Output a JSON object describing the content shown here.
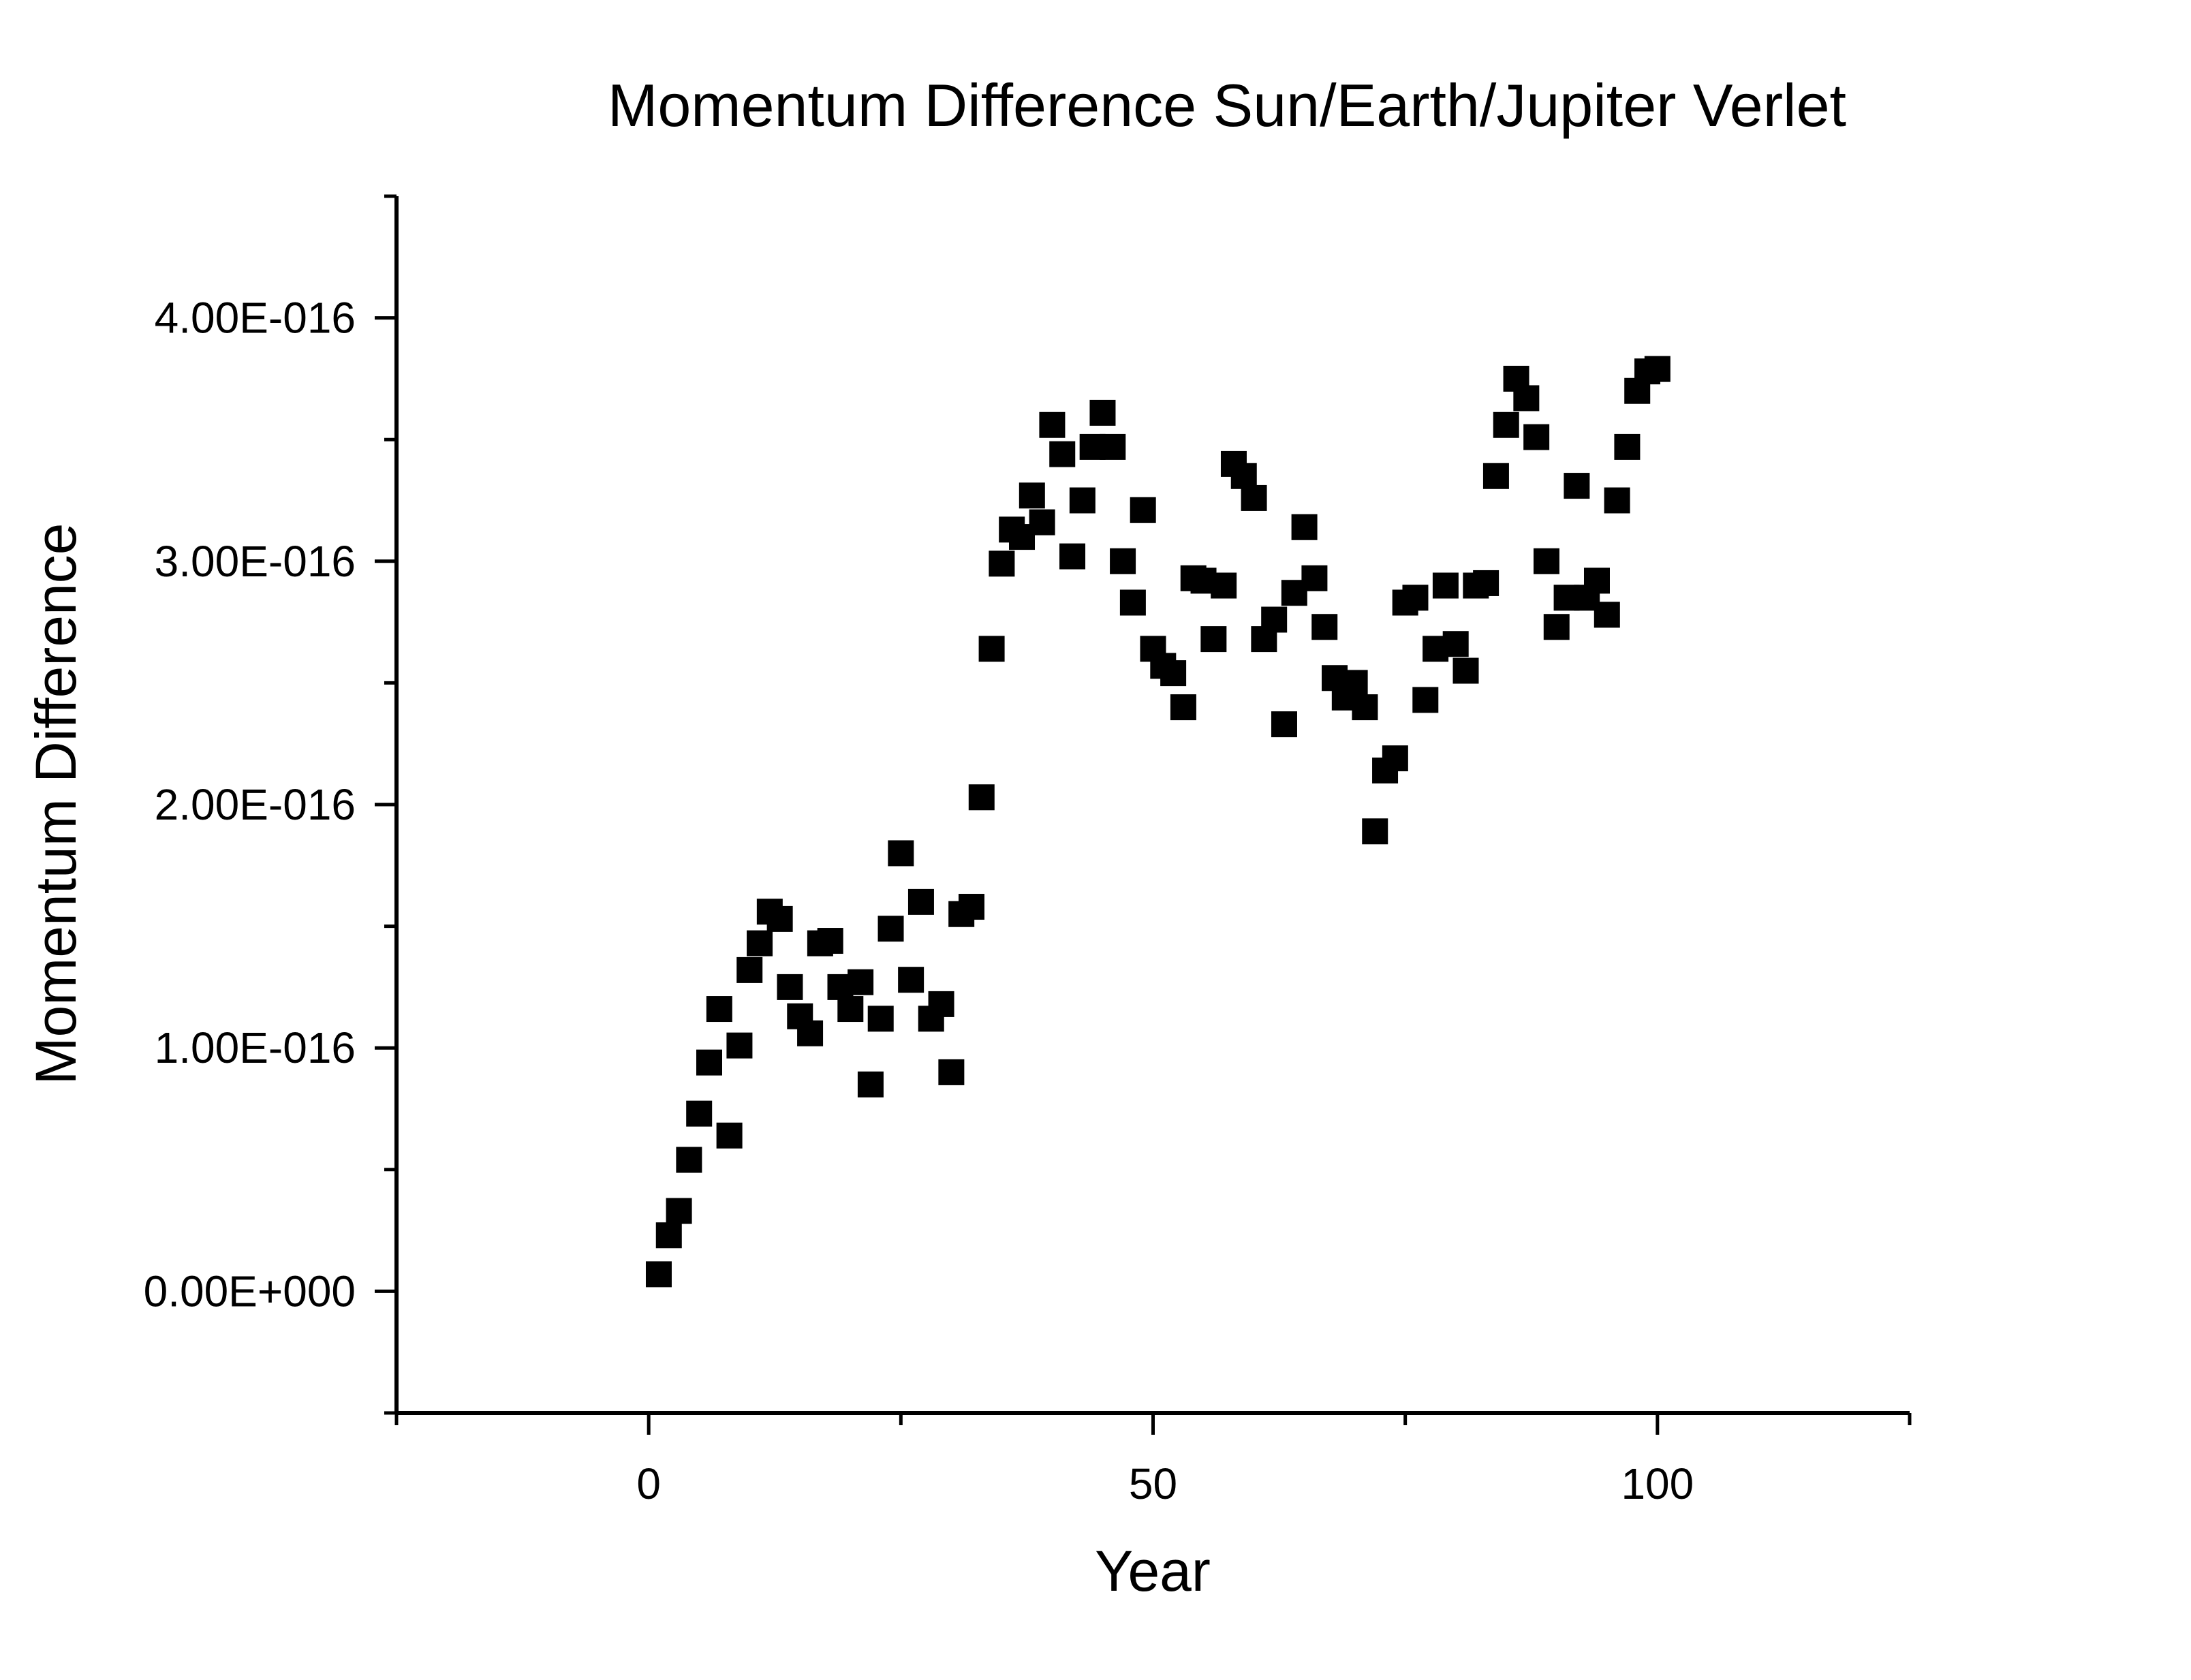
{
  "chart_data": {
    "type": "scatter",
    "title": "Momentum Difference Sun/Earth/Jupiter Verlet",
    "xlabel": "Year",
    "ylabel": "Momentum Difference",
    "xlim": [
      -25,
      125
    ],
    "ylim": [
      -5e-17,
      4.5e-16
    ],
    "x_ticks": [
      {
        "value": 0,
        "label": "0"
      },
      {
        "value": 50,
        "label": "50"
      },
      {
        "value": 100,
        "label": "100"
      }
    ],
    "y_ticks": [
      {
        "value": 0,
        "label": "0.00E+000"
      },
      {
        "value": 1e-16,
        "label": "1.00E-016"
      },
      {
        "value": 2e-16,
        "label": "2.00E-016"
      },
      {
        "value": 3e-16,
        "label": "3.00E-016"
      },
      {
        "value": 4e-16,
        "label": "4.00E-016"
      }
    ],
    "marker": "square",
    "marker_color": "#000000",
    "grid": false,
    "legend": "none",
    "series": [
      {
        "points": [
          [
            1,
            7e-18
          ],
          [
            2,
            2.3e-17
          ],
          [
            3,
            3.3e-17
          ],
          [
            4,
            5.4e-17
          ],
          [
            5,
            7.3e-17
          ],
          [
            6,
            9.4e-17
          ],
          [
            7,
            1.16e-16
          ],
          [
            8,
            6.4e-17
          ],
          [
            9,
            1.01e-16
          ],
          [
            10,
            1.32e-16
          ],
          [
            11,
            1.43e-16
          ],
          [
            12,
            1.56e-16
          ],
          [
            13,
            1.53e-16
          ],
          [
            14,
            1.25e-16
          ],
          [
            15,
            1.13e-16
          ],
          [
            16,
            1.06e-16
          ],
          [
            17,
            1.43e-16
          ],
          [
            18,
            1.44e-16
          ],
          [
            19,
            1.25e-16
          ],
          [
            20,
            1.16e-16
          ],
          [
            21,
            1.27e-16
          ],
          [
            22,
            8.5e-17
          ],
          [
            23,
            1.12e-16
          ],
          [
            24,
            1.49e-16
          ],
          [
            25,
            1.8e-16
          ],
          [
            26,
            1.28e-16
          ],
          [
            27,
            1.6e-16
          ],
          [
            28,
            1.12e-16
          ],
          [
            29,
            1.18e-16
          ],
          [
            30,
            9e-17
          ],
          [
            31,
            1.55e-16
          ],
          [
            32,
            1.58e-16
          ],
          [
            33,
            2.03e-16
          ],
          [
            34,
            2.64e-16
          ],
          [
            35,
            2.99e-16
          ],
          [
            36,
            3.13e-16
          ],
          [
            37,
            3.1e-16
          ],
          [
            38,
            3.27e-16
          ],
          [
            39,
            3.16e-16
          ],
          [
            40,
            3.56e-16
          ],
          [
            41,
            3.44e-16
          ],
          [
            42,
            3.02e-16
          ],
          [
            43,
            3.25e-16
          ],
          [
            44,
            3.47e-16
          ],
          [
            45,
            3.61e-16
          ],
          [
            46,
            3.47e-16
          ],
          [
            47,
            3e-16
          ],
          [
            48,
            2.83e-16
          ],
          [
            49,
            3.21e-16
          ],
          [
            50,
            2.64e-16
          ],
          [
            51,
            2.57e-16
          ],
          [
            52,
            2.54e-16
          ],
          [
            53,
            2.4e-16
          ],
          [
            54,
            2.93e-16
          ],
          [
            55,
            2.92e-16
          ],
          [
            56,
            2.68e-16
          ],
          [
            57,
            2.9e-16
          ],
          [
            58,
            3.4e-16
          ],
          [
            59,
            3.35e-16
          ],
          [
            60,
            3.26e-16
          ],
          [
            61,
            2.68e-16
          ],
          [
            62,
            2.76e-16
          ],
          [
            63,
            2.33e-16
          ],
          [
            64,
            2.87e-16
          ],
          [
            65,
            3.14e-16
          ],
          [
            66,
            2.93e-16
          ],
          [
            67,
            2.73e-16
          ],
          [
            68,
            2.52e-16
          ],
          [
            69,
            2.44e-16
          ],
          [
            70,
            2.5e-16
          ],
          [
            71,
            2.4e-16
          ],
          [
            72,
            1.89e-16
          ],
          [
            73,
            2.14e-16
          ],
          [
            74,
            2.19e-16
          ],
          [
            75,
            2.83e-16
          ],
          [
            76,
            2.85e-16
          ],
          [
            77,
            2.43e-16
          ],
          [
            78,
            2.64e-16
          ],
          [
            79,
            2.9e-16
          ],
          [
            80,
            2.66e-16
          ],
          [
            81,
            2.55e-16
          ],
          [
            82,
            2.9e-16
          ],
          [
            83,
            2.91e-16
          ],
          [
            84,
            3.35e-16
          ],
          [
            85,
            3.56e-16
          ],
          [
            86,
            3.75e-16
          ],
          [
            87,
            3.67e-16
          ],
          [
            88,
            3.51e-16
          ],
          [
            89,
            3e-16
          ],
          [
            90,
            2.73e-16
          ],
          [
            91,
            2.85e-16
          ],
          [
            92,
            3.31e-16
          ],
          [
            93,
            2.85e-16
          ],
          [
            94,
            2.92e-16
          ],
          [
            95,
            2.78e-16
          ],
          [
            96,
            3.25e-16
          ],
          [
            97,
            3.47e-16
          ],
          [
            98,
            3.7e-16
          ],
          [
            99,
            3.78e-16
          ],
          [
            100,
            3.79e-16
          ]
        ]
      }
    ]
  }
}
